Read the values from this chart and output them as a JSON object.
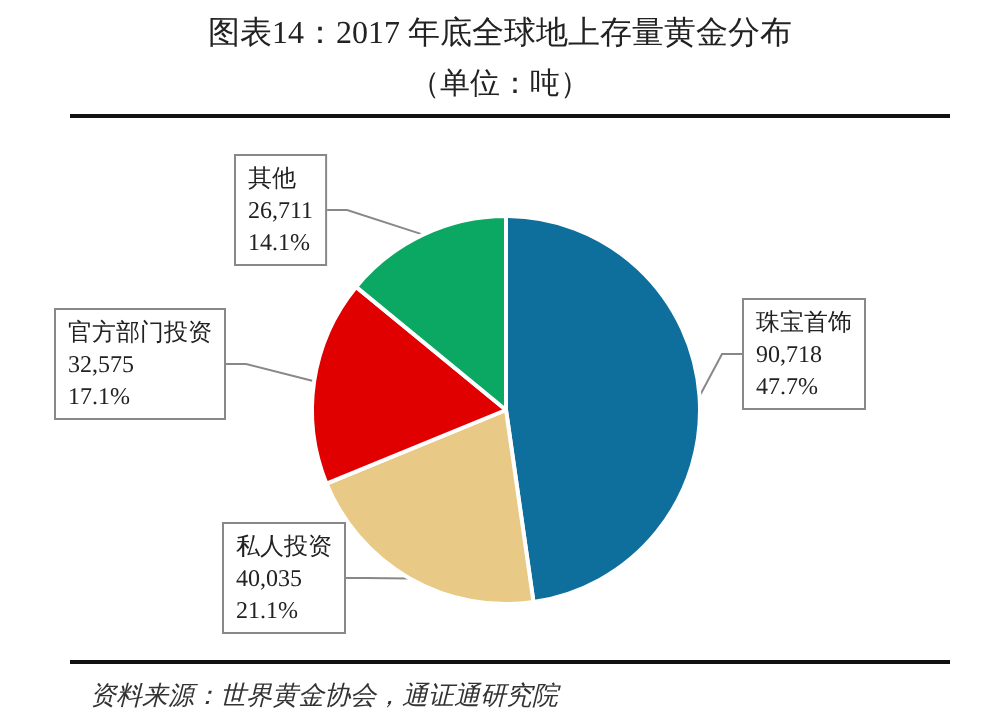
{
  "chart_data": {
    "type": "pie",
    "title": "图表14：2017 年底全球地上存量黄金分布",
    "subtitle": "（单位：吨）",
    "categories": [
      "珠宝首饰",
      "私人投资",
      "官方部门投资",
      "其他"
    ],
    "values": [
      90718,
      40035,
      32575,
      26711
    ],
    "value_labels": [
      "90,718\n47.7%",
      "40,035\n21.1%",
      "32,575\n17.1%",
      "26,711\n14.1%"
    ],
    "colors": [
      "#0e6e9c",
      "#e8c985",
      "#e00000",
      "#0aa862"
    ],
    "annotations": [
      "资料来源：世界黄金协会，通证通研究院"
    ]
  }
}
